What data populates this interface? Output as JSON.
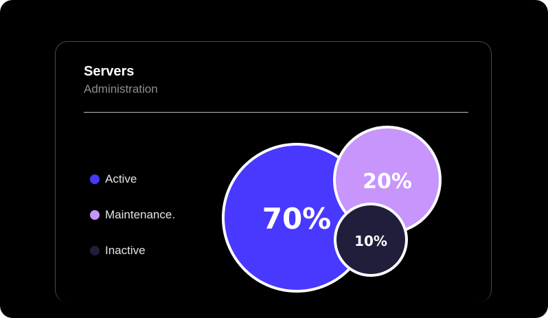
{
  "card": {
    "title": "Servers",
    "subtitle": "Administration"
  },
  "chart_data": {
    "type": "bubble",
    "title": "Servers",
    "subtitle": "Administration",
    "legend_placement": "left",
    "series": [
      {
        "name": "Active",
        "value": 70,
        "label": "70%",
        "color": "#4939FF"
      },
      {
        "name": "Maintenance.",
        "value": 20,
        "label": "20%",
        "color": "#C795FB"
      },
      {
        "name": "Inactive",
        "value": 10,
        "label": "10%",
        "color": "#211E3C"
      }
    ]
  }
}
